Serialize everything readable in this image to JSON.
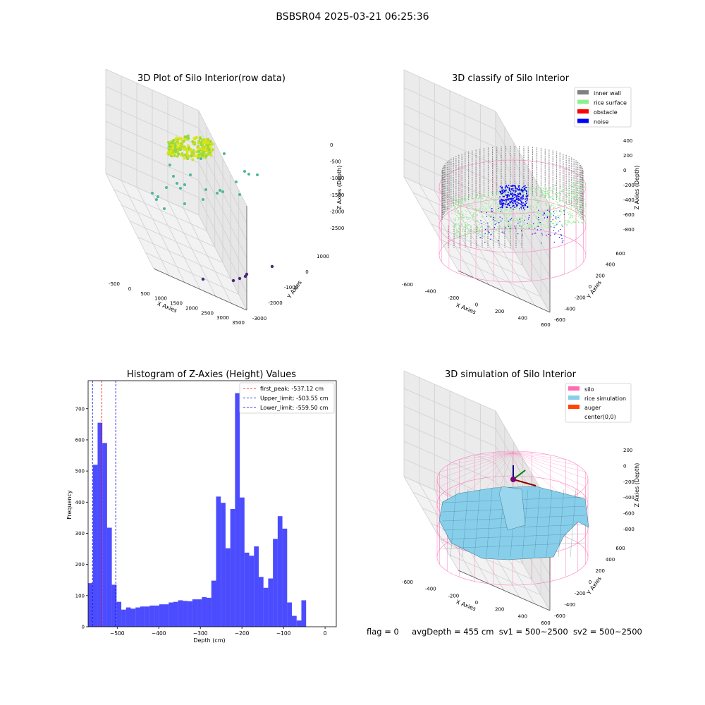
{
  "suptitle": "BSBSR04 2025-03-21 06:25:36",
  "plot1": {
    "title": "3D Plot of Silo Interior(row data)",
    "xlabel": "X Axies",
    "ylabel": "Y Axies",
    "zlabel": "Z Axies (Depth)",
    "xticks": [
      "-500",
      "0",
      "500",
      "1000",
      "1500",
      "2000",
      "2500",
      "3000",
      "3500"
    ],
    "yticks": [
      "1000",
      "0",
      "-1000",
      "-2000",
      "-3000"
    ],
    "zticks": [
      "0",
      "-500",
      "-1000",
      "-1500",
      "-2000",
      "-2500"
    ]
  },
  "plot2": {
    "title": "3D classify of Silo Interior",
    "xlabel": "X Axies",
    "ylabel": "Y Axies",
    "zlabel": "Z Axies (Depth)",
    "xticks": [
      "-600",
      "-400",
      "-200",
      "0",
      "200",
      "400",
      "600"
    ],
    "yticks": [
      "600",
      "400",
      "200",
      "0",
      "-200",
      "-400",
      "-600"
    ],
    "zticks": [
      "400",
      "200",
      "0",
      "-200",
      "-400",
      "-600",
      "-800"
    ],
    "legend": [
      {
        "label": "inner wall",
        "color": "#808080"
      },
      {
        "label": "rice surface",
        "color": "#90ee90"
      },
      {
        "label": "obstacle",
        "color": "#ff0000"
      },
      {
        "label": "noise",
        "color": "#0000ff"
      }
    ]
  },
  "plot4": {
    "title": "3D simulation of Silo Interior",
    "xlabel": "X Axies",
    "ylabel": "Y Axies",
    "zlabel": "Z Axies (Depth)",
    "xticks": [
      "-600",
      "-400",
      "-200",
      "0",
      "200",
      "400",
      "600"
    ],
    "yticks": [
      "600",
      "400",
      "200",
      "0",
      "-200",
      "-400",
      "-600"
    ],
    "zticks": [
      "200",
      "0",
      "-200",
      "-400",
      "-600",
      "-800"
    ],
    "legend": [
      {
        "label": "silo",
        "color": "#ff69b4"
      },
      {
        "label": "rice simulation",
        "color": "#87ceeb"
      },
      {
        "label": "auger",
        "color": "#ff4500"
      },
      {
        "label": "center(0,0)",
        "color": ""
      }
    ]
  },
  "footer": {
    "flag": "flag = 0",
    "avg": "avgDepth = 455 cm",
    "sv1": "sv1 = 500~2500",
    "sv2": "sv2 = 500~2500"
  },
  "chart_data": {
    "type": "bar",
    "title": "Histogram of Z-Axies (Height) Values",
    "xlabel": "Depth (cm)",
    "ylabel": "Frequency",
    "xlim": [
      -570,
      27
    ],
    "ylim": [
      0,
      790
    ],
    "xticks": [
      -500,
      -400,
      -300,
      -200,
      -100,
      0
    ],
    "yticks": [
      0,
      100,
      200,
      300,
      400,
      500,
      600,
      700
    ],
    "bin_start": -570,
    "bin_width": 11.4,
    "values": [
      140,
      520,
      655,
      590,
      318,
      135,
      80,
      55,
      62,
      58,
      62,
      65,
      65,
      68,
      68,
      72,
      72,
      78,
      80,
      85,
      83,
      82,
      88,
      88,
      95,
      93,
      148,
      418,
      398,
      252,
      378,
      750,
      415,
      238,
      228,
      258,
      160,
      125,
      155,
      282,
      355,
      315,
      78,
      35,
      20,
      85
    ],
    "color": "#0000ff",
    "vlines": [
      {
        "label": "first_peak: -537.12 cm",
        "x": -537.12,
        "color": "#ff0000"
      },
      {
        "label": "Upper_limit: -503.55 cm",
        "x": -503.55,
        "color": "#0000cd"
      },
      {
        "label": "Lower_limit: -559.50 cm",
        "x": -559.5,
        "color": "#0000cd"
      }
    ]
  }
}
